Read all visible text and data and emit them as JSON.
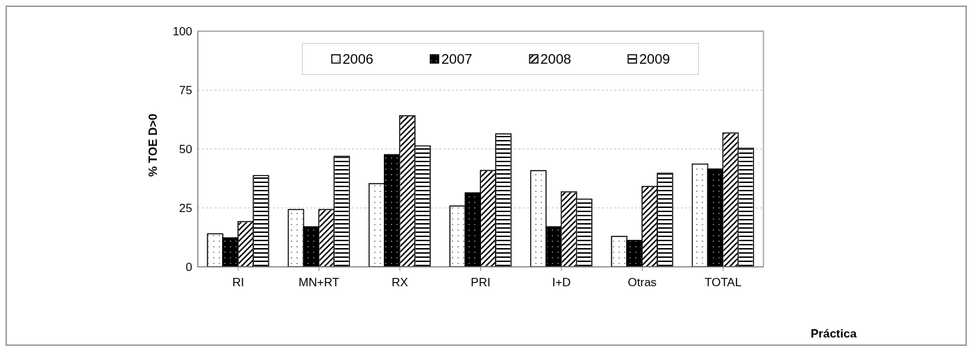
{
  "chart_data": {
    "type": "bar",
    "ylabel": "% TOE D>0",
    "annotations": [
      "Práctica"
    ],
    "categories": [
      "RI",
      "MN+RT",
      "RX",
      "PRI",
      "I+D",
      "Otras",
      "TOTAL"
    ],
    "series": [
      {
        "name": "2006",
        "color": "#ffffff",
        "values": [
          14,
          24.3,
          35.3,
          25.8,
          40.8,
          12.9,
          43.6
        ]
      },
      {
        "name": "2007",
        "color": "#000000",
        "values": [
          12.3,
          17,
          47.6,
          31.4,
          17,
          11.2,
          41.5
        ]
      },
      {
        "name": "2008",
        "color": "#ffffff",
        "values": [
          19.2,
          24.3,
          64.1,
          40.9,
          31.8,
          34.1,
          56.8
        ]
      },
      {
        "name": "2009",
        "color": "#ffffff",
        "values": [
          38.7,
          46.9,
          51.3,
          56.4,
          28.7,
          39.7,
          50.3
        ]
      }
    ],
    "ylim": [
      0,
      100
    ],
    "yticks": [
      0,
      25,
      50,
      75,
      100
    ],
    "grid": "y",
    "legend": "top"
  }
}
